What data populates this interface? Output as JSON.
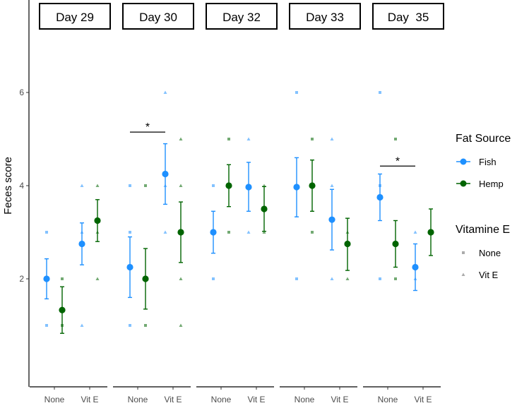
{
  "chart_data": {
    "type": "scatter",
    "ylabel": "Feces score",
    "ylim": [
      0,
      7
    ],
    "y_ticks": [
      "2",
      "4",
      "6"
    ],
    "categories": [
      "None",
      "Vit E"
    ],
    "colors": {
      "Fish": "#1e90ff",
      "Hemp": "#006400"
    },
    "panels": [
      {
        "label": "Day 29",
        "mean_points": [
          {
            "source": "Fish",
            "x": "None",
            "mean": 2.0,
            "lo": 1.57,
            "hi": 2.43
          },
          {
            "source": "Hemp",
            "x": "None",
            "mean": 1.33,
            "lo": 0.83,
            "hi": 1.83
          },
          {
            "source": "Fish",
            "x": "Vit E",
            "mean": 2.75,
            "lo": 2.3,
            "hi": 3.2
          },
          {
            "source": "Hemp",
            "x": "Vit E",
            "mean": 3.25,
            "lo": 2.8,
            "hi": 3.7
          }
        ],
        "raw_points": [
          {
            "source": "Fish",
            "x": "None",
            "vitamine": "None",
            "values": [
              3,
              1
            ]
          },
          {
            "source": "Hemp",
            "x": "None",
            "vitamine": "None",
            "values": [
              2,
              1
            ]
          },
          {
            "source": "Fish",
            "x": "Vit E",
            "vitamine": "Vit E",
            "values": [
              4,
              3,
              1
            ]
          },
          {
            "source": "Hemp",
            "x": "Vit E",
            "vitamine": "Vit E",
            "values": [
              4,
              3,
              2
            ]
          }
        ],
        "significance": null
      },
      {
        "label": "Day 30",
        "mean_points": [
          {
            "source": "Fish",
            "x": "None",
            "mean": 2.25,
            "lo": 1.6,
            "hi": 2.9
          },
          {
            "source": "Hemp",
            "x": "None",
            "mean": 2.0,
            "lo": 1.35,
            "hi": 2.65
          },
          {
            "source": "Fish",
            "x": "Vit E",
            "mean": 4.25,
            "lo": 3.6,
            "hi": 4.9
          },
          {
            "source": "Hemp",
            "x": "Vit E",
            "mean": 3.0,
            "lo": 2.35,
            "hi": 3.65
          }
        ],
        "raw_points": [
          {
            "source": "Fish",
            "x": "None",
            "vitamine": "None",
            "values": [
              4,
              3,
              1
            ]
          },
          {
            "source": "Hemp",
            "x": "None",
            "vitamine": "None",
            "values": [
              4,
              1
            ]
          },
          {
            "source": "Fish",
            "x": "Vit E",
            "vitamine": "Vit E",
            "values": [
              6,
              4,
              3
            ]
          },
          {
            "source": "Hemp",
            "x": "Vit E",
            "vitamine": "Vit E",
            "values": [
              5,
              4,
              2,
              1
            ]
          }
        ],
        "significance": {
          "label": "*",
          "from": "None",
          "to": "Vit E",
          "y": 5.15
        }
      },
      {
        "label": "Day 32",
        "mean_points": [
          {
            "source": "Fish",
            "x": "None",
            "mean": 3.0,
            "lo": 2.55,
            "hi": 3.45
          },
          {
            "source": "Hemp",
            "x": "None",
            "mean": 4.0,
            "lo": 3.55,
            "hi": 4.45
          },
          {
            "source": "Fish",
            "x": "Vit E",
            "mean": 3.97,
            "lo": 3.45,
            "hi": 4.5
          },
          {
            "source": "Hemp",
            "x": "Vit E",
            "mean": 3.5,
            "lo": 3.02,
            "hi": 3.98
          }
        ],
        "raw_points": [
          {
            "source": "Fish",
            "x": "None",
            "vitamine": "None",
            "values": [
              4,
              3,
              2
            ]
          },
          {
            "source": "Hemp",
            "x": "None",
            "vitamine": "None",
            "values": [
              5,
              4,
              3
            ]
          },
          {
            "source": "Fish",
            "x": "Vit E",
            "vitamine": "Vit E",
            "values": [
              5,
              4,
              3
            ]
          },
          {
            "source": "Hemp",
            "x": "Vit E",
            "vitamine": "Vit E",
            "values": [
              4,
              3
            ]
          }
        ],
        "significance": null
      },
      {
        "label": "Day 33",
        "mean_points": [
          {
            "source": "Fish",
            "x": "None",
            "mean": 3.97,
            "lo": 3.33,
            "hi": 4.6
          },
          {
            "source": "Hemp",
            "x": "None",
            "mean": 4.0,
            "lo": 3.45,
            "hi": 4.55
          },
          {
            "source": "Fish",
            "x": "Vit E",
            "mean": 3.27,
            "lo": 2.62,
            "hi": 3.92
          },
          {
            "source": "Hemp",
            "x": "Vit E",
            "mean": 2.75,
            "lo": 2.18,
            "hi": 3.3
          }
        ],
        "raw_points": [
          {
            "source": "Fish",
            "x": "None",
            "vitamine": "None",
            "values": [
              6,
              4,
              2
            ]
          },
          {
            "source": "Hemp",
            "x": "None",
            "vitamine": "None",
            "values": [
              5,
              3
            ]
          },
          {
            "source": "Fish",
            "x": "Vit E",
            "vitamine": "Vit E",
            "values": [
              5,
              4,
              2
            ]
          },
          {
            "source": "Hemp",
            "x": "Vit E",
            "vitamine": "Vit E",
            "values": [
              3,
              2
            ]
          }
        ],
        "significance": null
      },
      {
        "label": "Day  35",
        "mean_points": [
          {
            "source": "Fish",
            "x": "None",
            "mean": 3.75,
            "lo": 3.25,
            "hi": 4.25
          },
          {
            "source": "Hemp",
            "x": "None",
            "mean": 2.75,
            "lo": 2.25,
            "hi": 3.25
          },
          {
            "source": "Fish",
            "x": "Vit E",
            "mean": 2.25,
            "lo": 1.75,
            "hi": 2.75
          },
          {
            "source": "Hemp",
            "x": "Vit E",
            "mean": 3.0,
            "lo": 2.5,
            "hi": 3.5
          }
        ],
        "raw_points": [
          {
            "source": "Fish",
            "x": "None",
            "vitamine": "None",
            "values": [
              6,
              4,
              2
            ]
          },
          {
            "source": "Hemp",
            "x": "None",
            "vitamine": "None",
            "values": [
              5,
              2
            ]
          },
          {
            "source": "Fish",
            "x": "Vit E",
            "vitamine": "Vit E",
            "values": [
              3,
              2
            ]
          },
          {
            "source": "Hemp",
            "x": "Vit E",
            "vitamine": "Vit E",
            "values": [
              3
            ]
          }
        ],
        "significance": {
          "label": "*",
          "from": "None",
          "to": "Vit E",
          "y": 4.42
        }
      }
    ],
    "legend": {
      "placement": "right",
      "groups": [
        {
          "title": "Fat Source",
          "kind": "color",
          "entries": [
            "Fish",
            "Hemp"
          ]
        },
        {
          "title": "Vitamine E",
          "kind": "shape",
          "entries": [
            "None",
            "Vit E"
          ]
        }
      ]
    },
    "grid": false
  }
}
